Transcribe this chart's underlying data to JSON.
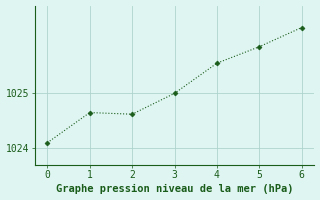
{
  "x": [
    0,
    1,
    2,
    3,
    4,
    5,
    6
  ],
  "y": [
    1024.1,
    1024.65,
    1024.62,
    1025.0,
    1025.55,
    1025.85,
    1026.2
  ],
  "line_color": "#1a5c1a",
  "marker": "D",
  "marker_size": 2.5,
  "background_color": "#dff5f2",
  "grid_color": "#aed4ce",
  "xlabel": "Graphe pression niveau de la mer (hPa)",
  "xlabel_color": "#1a5c1a",
  "xlabel_fontsize": 7.5,
  "tick_color": "#1a5c1a",
  "tick_fontsize": 7,
  "ylim": [
    1023.7,
    1026.6
  ],
  "xlim": [
    -0.3,
    6.3
  ],
  "yticks": [
    1024,
    1025
  ],
  "xticks": [
    0,
    1,
    2,
    3,
    4,
    5,
    6
  ]
}
